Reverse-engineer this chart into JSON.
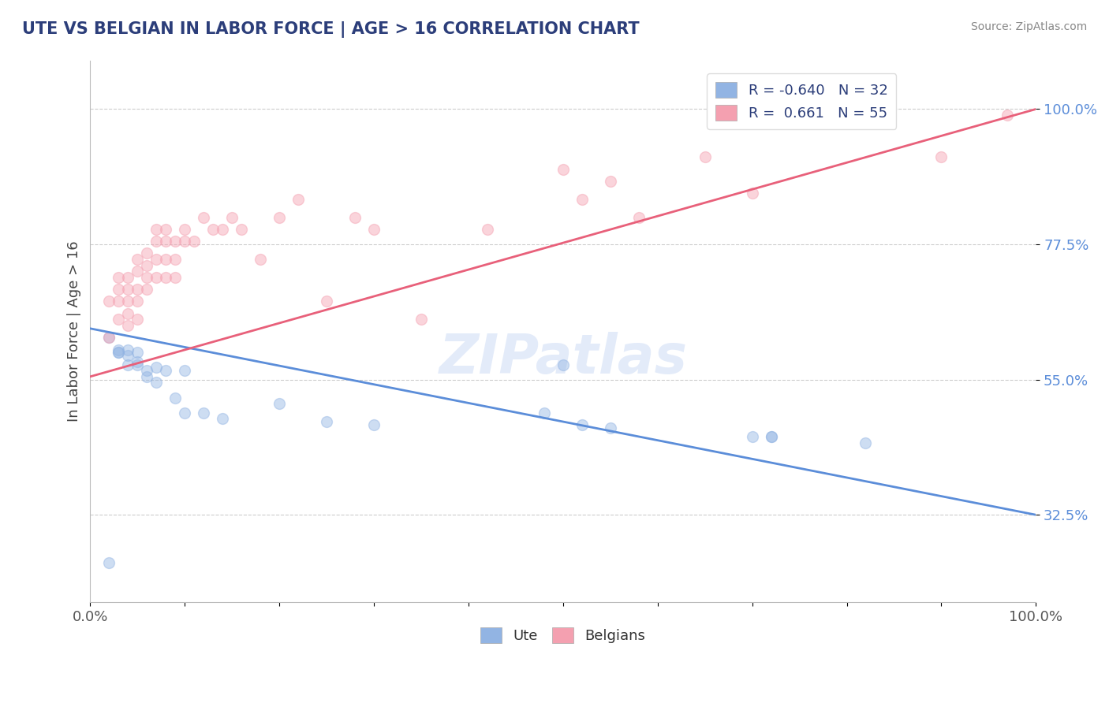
{
  "title": "UTE VS BELGIAN IN LABOR FORCE | AGE > 16 CORRELATION CHART",
  "source_text": "Source: ZipAtlas.com",
  "ylabel": "In Labor Force | Age > 16",
  "xlim": [
    0.0,
    1.0
  ],
  "ylim": [
    0.18,
    1.08
  ],
  "ytick_labels": [
    "32.5%",
    "55.0%",
    "77.5%",
    "100.0%"
  ],
  "ytick_values": [
    0.325,
    0.55,
    0.775,
    1.0
  ],
  "xtick_labels": [
    "0.0%",
    "",
    "",
    "",
    "",
    "",
    "",
    "",
    "",
    "",
    "100.0%"
  ],
  "xtick_values": [
    0.0,
    0.1,
    0.2,
    0.3,
    0.4,
    0.5,
    0.6,
    0.7,
    0.8,
    0.9,
    1.0
  ],
  "ute_color": "#92b4e3",
  "belgian_color": "#f4a0b0",
  "ute_line_color": "#5b8dd9",
  "belgian_line_color": "#e8607a",
  "title_color": "#2c3e7a",
  "r_ute": -0.64,
  "n_ute": 32,
  "r_belgian": 0.661,
  "n_belgian": 55,
  "ute_x": [
    0.02,
    0.02,
    0.03,
    0.03,
    0.03,
    0.04,
    0.04,
    0.04,
    0.05,
    0.05,
    0.05,
    0.06,
    0.06,
    0.07,
    0.07,
    0.08,
    0.09,
    0.1,
    0.1,
    0.12,
    0.14,
    0.2,
    0.25,
    0.3,
    0.48,
    0.5,
    0.52,
    0.55,
    0.7,
    0.72,
    0.72,
    0.82
  ],
  "ute_y": [
    0.245,
    0.62,
    0.595,
    0.6,
    0.595,
    0.6,
    0.59,
    0.575,
    0.595,
    0.58,
    0.575,
    0.555,
    0.565,
    0.57,
    0.545,
    0.565,
    0.52,
    0.495,
    0.565,
    0.495,
    0.485,
    0.51,
    0.48,
    0.475,
    0.495,
    0.575,
    0.475,
    0.47,
    0.455,
    0.455,
    0.455,
    0.445
  ],
  "belgian_x": [
    0.02,
    0.02,
    0.03,
    0.03,
    0.03,
    0.03,
    0.04,
    0.04,
    0.04,
    0.04,
    0.04,
    0.05,
    0.05,
    0.05,
    0.05,
    0.05,
    0.06,
    0.06,
    0.06,
    0.06,
    0.07,
    0.07,
    0.07,
    0.07,
    0.08,
    0.08,
    0.08,
    0.08,
    0.09,
    0.09,
    0.09,
    0.1,
    0.1,
    0.11,
    0.12,
    0.13,
    0.14,
    0.15,
    0.16,
    0.18,
    0.2,
    0.22,
    0.25,
    0.28,
    0.3,
    0.35,
    0.42,
    0.5,
    0.52,
    0.55,
    0.58,
    0.65,
    0.7,
    0.9,
    0.97
  ],
  "belgian_y": [
    0.62,
    0.68,
    0.72,
    0.7,
    0.68,
    0.65,
    0.72,
    0.7,
    0.68,
    0.66,
    0.64,
    0.75,
    0.73,
    0.7,
    0.68,
    0.65,
    0.76,
    0.74,
    0.72,
    0.7,
    0.8,
    0.78,
    0.75,
    0.72,
    0.8,
    0.78,
    0.75,
    0.72,
    0.78,
    0.75,
    0.72,
    0.8,
    0.78,
    0.78,
    0.82,
    0.8,
    0.8,
    0.82,
    0.8,
    0.75,
    0.82,
    0.85,
    0.68,
    0.82,
    0.8,
    0.65,
    0.8,
    0.9,
    0.85,
    0.88,
    0.82,
    0.92,
    0.86,
    0.92,
    0.99
  ],
  "ute_line": [
    0.0,
    1.0,
    0.635,
    0.325
  ],
  "belgian_line": [
    0.0,
    1.0,
    0.555,
    1.0
  ],
  "watermark_text": "ZIPatlas",
  "background_color": "#ffffff",
  "grid_color": "#cccccc",
  "marker_size": 100,
  "marker_alpha": 0.45
}
